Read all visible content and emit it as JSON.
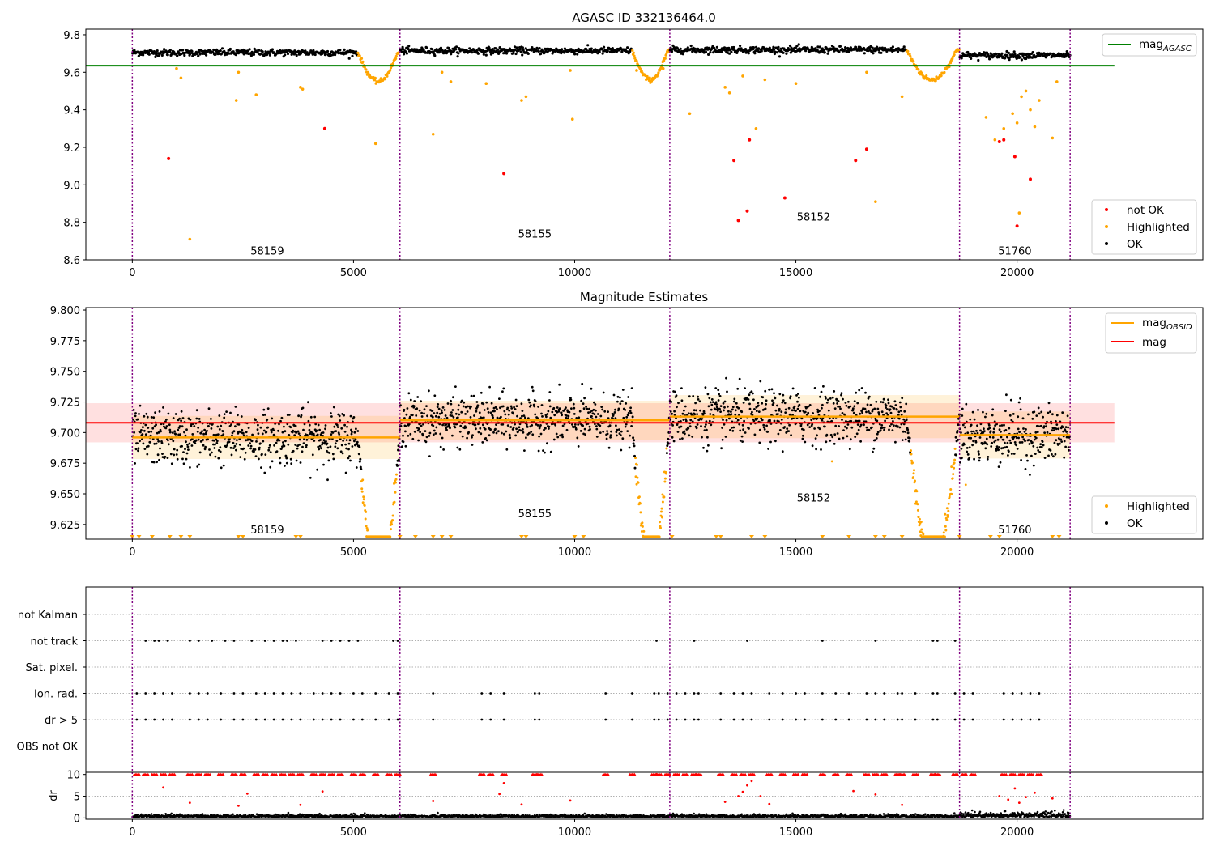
{
  "colors": {
    "ok": "#000000",
    "highlighted": "#ffa500",
    "not_ok": "#ff0000",
    "agasc_line": "#008000",
    "obsid_line": "#ffa500",
    "mag_line": "#ff0000",
    "obs_boundary": "#800080",
    "grid": "#b0b0b0"
  },
  "chart_data": [
    {
      "type": "scatter",
      "title": "AGASC ID 332136464.0",
      "xlim": [
        -1050,
        24200
      ],
      "ylim": [
        8.6,
        9.83
      ],
      "xticks": [
        0,
        5000,
        10000,
        15000,
        20000
      ],
      "yticks": [
        8.6,
        8.8,
        9.0,
        9.2,
        9.4,
        9.6,
        9.8
      ],
      "ytick_labels": [
        "8.6",
        "8.8",
        "9.0",
        "9.2",
        "9.4",
        "9.6",
        "9.8"
      ],
      "obs_boundaries": [
        0,
        6050,
        12150,
        18700,
        21200
      ],
      "observations": [
        {
          "obsid": "58159",
          "x_start": 0,
          "x_end": 6050,
          "label_x": 3050,
          "label_y": 8.65,
          "mag_level": 9.705
        },
        {
          "obsid": "58155",
          "x_start": 6050,
          "x_end": 12150,
          "label_x": 9100,
          "label_y": 8.74,
          "mag_level": 9.715
        },
        {
          "obsid": "58152",
          "x_start": 12150,
          "x_end": 18700,
          "label_x": 15400,
          "label_y": 8.83,
          "mag_level": 9.72
        },
        {
          "obsid": "51760",
          "x_start": 18700,
          "x_end": 21200,
          "label_x": 19950,
          "label_y": 8.65,
          "mag_level": 9.69
        }
      ],
      "dips": [
        {
          "x_start": 5100,
          "x_end": 6050,
          "min": 9.55
        },
        {
          "x_start": 11300,
          "x_end": 12150,
          "min": 9.56
        },
        {
          "x_start": 17500,
          "x_end": 18700,
          "min": 9.56
        }
      ],
      "mag_agasc": 9.635,
      "not_ok_points": [
        [
          820,
          9.14
        ],
        [
          4350,
          9.3
        ],
        [
          8400,
          9.06
        ],
        [
          13600,
          9.13
        ],
        [
          13900,
          8.86
        ],
        [
          13950,
          9.24
        ],
        [
          13700,
          8.81
        ],
        [
          14750,
          8.93
        ],
        [
          16350,
          9.13
        ],
        [
          16600,
          9.19
        ],
        [
          19600,
          9.23
        ],
        [
          19700,
          9.24
        ],
        [
          19950,
          9.15
        ],
        [
          20300,
          9.03
        ],
        [
          20000,
          8.78
        ]
      ],
      "highlighted_outliers": [
        [
          1300,
          8.71
        ],
        [
          1000,
          9.62
        ],
        [
          1100,
          9.57
        ],
        [
          2350,
          9.45
        ],
        [
          2400,
          9.6
        ],
        [
          2800,
          9.48
        ],
        [
          3800,
          9.52
        ],
        [
          3850,
          9.51
        ],
        [
          5500,
          9.22
        ],
        [
          6800,
          9.27
        ],
        [
          7000,
          9.6
        ],
        [
          7200,
          9.55
        ],
        [
          8000,
          9.54
        ],
        [
          8800,
          9.45
        ],
        [
          8900,
          9.47
        ],
        [
          9900,
          9.61
        ],
        [
          9950,
          9.35
        ],
        [
          11400,
          9.61
        ],
        [
          12000,
          9.62
        ],
        [
          12600,
          9.38
        ],
        [
          13400,
          9.52
        ],
        [
          13500,
          9.49
        ],
        [
          13800,
          9.58
        ],
        [
          14100,
          9.3
        ],
        [
          14300,
          9.56
        ],
        [
          15000,
          9.54
        ],
        [
          16600,
          9.6
        ],
        [
          16800,
          8.91
        ],
        [
          17400,
          9.47
        ],
        [
          19300,
          9.36
        ],
        [
          19500,
          9.24
        ],
        [
          19700,
          9.3
        ],
        [
          19900,
          9.38
        ],
        [
          20000,
          9.33
        ],
        [
          20050,
          8.85
        ],
        [
          20100,
          9.47
        ],
        [
          20200,
          9.5
        ],
        [
          20300,
          9.4
        ],
        [
          20400,
          9.31
        ],
        [
          20500,
          9.45
        ],
        [
          20800,
          9.25
        ],
        [
          20900,
          9.55
        ]
      ],
      "legend": {
        "position": "upper right",
        "lower_position": "lower right",
        "lines": [
          {
            "label": "mag",
            "subscript": "AGASC"
          }
        ],
        "markers": [
          "not OK",
          "Highlighted",
          "OK"
        ]
      }
    },
    {
      "type": "scatter",
      "title": "Magnitude Estimates",
      "xlim": [
        -1050,
        24200
      ],
      "ylim": [
        9.613,
        9.802
      ],
      "xticks": [
        0,
        5000,
        10000,
        15000,
        20000
      ],
      "yticks": [
        9.625,
        9.65,
        9.675,
        9.7,
        9.725,
        9.75,
        9.775,
        9.8
      ],
      "ytick_labels": [
        "9.625",
        "9.650",
        "9.675",
        "9.700",
        "9.725",
        "9.750",
        "9.775",
        "9.800"
      ],
      "obs_boundaries": [
        0,
        6050,
        12150,
        18700,
        21200
      ],
      "observations": [
        {
          "obsid": "58159",
          "x_start": 0,
          "x_end": 6050,
          "label_x": 3050,
          "label_y": 9.621,
          "level": 9.696,
          "spread": 0.011
        },
        {
          "obsid": "58155",
          "x_start": 6050,
          "x_end": 12150,
          "label_x": 9100,
          "label_y": 9.634,
          "level": 9.71,
          "spread": 0.01
        },
        {
          "obsid": "58152",
          "x_start": 12150,
          "x_end": 18700,
          "label_x": 15400,
          "label_y": 9.647,
          "level": 9.713,
          "spread": 0.011
        },
        {
          "obsid": "51760",
          "x_start": 18700,
          "x_end": 21200,
          "label_x": 19950,
          "label_y": 9.621,
          "level": 9.698,
          "spread": 0.012
        }
      ],
      "mag": 9.708,
      "mag_band": [
        9.692,
        9.724
      ],
      "legend": {
        "lines": [
          {
            "label": "mag",
            "subscript": "OBSID"
          },
          {
            "label": "mag",
            "subscript": ""
          }
        ],
        "markers": [
          "Highlighted",
          "OK"
        ]
      }
    },
    {
      "type": "scatter",
      "xlim": [
        -1050,
        24200
      ],
      "xticks": [
        0,
        5000,
        10000,
        15000,
        20000
      ],
      "obs_boundaries": [
        0,
        6050,
        12150,
        18700,
        21200
      ],
      "categories": [
        "not Kalman",
        "not track",
        "Sat. pixel.",
        "Ion. rad.",
        "dr > 5",
        "OBS not OK"
      ],
      "flag_points": {
        "not track": [
          300,
          500,
          600,
          800,
          1300,
          1500,
          1800,
          2100,
          2300,
          2700,
          3000,
          3200,
          3400,
          3500,
          3700,
          4300,
          4500,
          4700,
          4900,
          5100,
          5900,
          6000,
          11850,
          12700,
          13900,
          15600,
          16800,
          18100,
          18200,
          18600
        ],
        "Ion. rad.": [
          100,
          300,
          500,
          700,
          900,
          1300,
          1500,
          1700,
          2000,
          2300,
          2500,
          2800,
          3000,
          3200,
          3400,
          3600,
          3800,
          4100,
          4300,
          4500,
          4700,
          5000,
          5200,
          5500,
          5800,
          6000,
          6800,
          7900,
          8100,
          8400,
          9100,
          9200,
          10700,
          11300,
          11800,
          11900,
          12100,
          12300,
          12500,
          12700,
          12800,
          13300,
          13600,
          13800,
          14000,
          14400,
          14700,
          15000,
          15200,
          15600,
          15900,
          16200,
          16600,
          16800,
          17000,
          17300,
          17400,
          17700,
          18100,
          18200,
          18600,
          18800,
          19000,
          19700,
          19900,
          20100,
          20300,
          20500
        ],
        "dr > 5": [
          100,
          300,
          500,
          700,
          900,
          1300,
          1500,
          1700,
          2000,
          2300,
          2500,
          2800,
          3000,
          3200,
          3400,
          3600,
          3800,
          4100,
          4300,
          4500,
          4700,
          5000,
          5200,
          5500,
          5800,
          6000,
          6800,
          7900,
          8100,
          8400,
          9100,
          9200,
          10700,
          11300,
          11800,
          11900,
          12100,
          12300,
          12500,
          12700,
          12800,
          13300,
          13600,
          13800,
          14000,
          14400,
          14700,
          15000,
          15200,
          15600,
          15900,
          16200,
          16600,
          16800,
          17000,
          17300,
          17400,
          17700,
          18100,
          18200,
          18600,
          18800,
          19000,
          19700,
          19900,
          20100,
          20300,
          20500
        ]
      },
      "flag_ticks": [
        "not Kalman",
        "not track",
        "Sat. pixel.",
        "Ion. rad.",
        "dr > 5",
        "OBS not OK"
      ]
    },
    {
      "type": "scatter",
      "xlim": [
        -1050,
        24200
      ],
      "ylim": [
        -0.3,
        10.5
      ],
      "xticks": [
        0,
        5000,
        10000,
        15000,
        20000
      ],
      "yticks": [
        0,
        5,
        10
      ],
      "ytick_labels": [
        "0",
        "5",
        "10"
      ],
      "ylabel": "dr",
      "obs_boundaries": [
        0,
        6050,
        12150,
        18700,
        21200
      ],
      "clipped_value": 10,
      "sparse_dr_points": [
        [
          700,
          7.0
        ],
        [
          1300,
          3.5
        ],
        [
          2600,
          5.6
        ],
        [
          4300,
          6.1
        ],
        [
          3800,
          3.0
        ],
        [
          2400,
          2.8
        ],
        [
          6800,
          3.9
        ],
        [
          8400,
          8.0
        ],
        [
          8300,
          5.5
        ],
        [
          8800,
          3.1
        ],
        [
          9900,
          4.0
        ],
        [
          13400,
          3.7
        ],
        [
          13700,
          5.0
        ],
        [
          13800,
          6.0
        ],
        [
          13900,
          7.5
        ],
        [
          14000,
          8.5
        ],
        [
          14200,
          5.0
        ],
        [
          14400,
          3.2
        ],
        [
          16300,
          6.2
        ],
        [
          16800,
          5.4
        ],
        [
          17400,
          3.0
        ],
        [
          19600,
          5.0
        ],
        [
          19800,
          4.2
        ],
        [
          19950,
          6.8
        ],
        [
          20050,
          3.5
        ],
        [
          20200,
          4.8
        ],
        [
          20400,
          5.8
        ],
        [
          20800,
          4.5
        ]
      ]
    }
  ]
}
